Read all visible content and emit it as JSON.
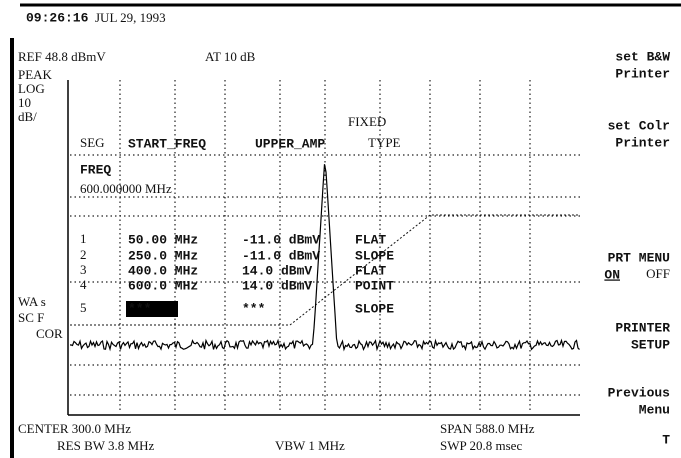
{
  "header": {
    "time": "09:26:16",
    "date": "JUL 29, 1993",
    "ref": "REF 48.8 dBmV",
    "atten": "AT 10 dB"
  },
  "left_labels": {
    "top": [
      "PEAK",
      "LOG",
      "10",
      "dB/"
    ],
    "bottom": [
      "WA s",
      "SC F",
      "COR"
    ]
  },
  "table": {
    "fixed": "FIXED",
    "columns": [
      "SEG",
      "START_FREQ",
      "UPPER_AMP",
      "TYPE"
    ],
    "field": "FREQ",
    "field_value": "600.000000 MHz",
    "rows": [
      [
        "1",
        "50.00 MHz",
        "-11.0 dBmV",
        "FLAT"
      ],
      [
        "2",
        "250.0 MHz",
        "-11.0 dBmV",
        "SLOPE"
      ],
      [
        "3",
        "400.0 MHz",
        "14.0 dBmV",
        "FLAT"
      ],
      [
        "4",
        "600.0 MHz",
        "14.0 dBmV",
        "POINT"
      ],
      [
        "5",
        "***",
        "***",
        "SLOPE"
      ]
    ]
  },
  "softkeys": [
    {
      "lines": [
        "set B&W",
        "Printer"
      ]
    },
    {
      "lines": [
        "set Colr",
        "Printer"
      ]
    },
    {
      "lines": [
        "PRT MENU"
      ],
      "on": "ON",
      "off": "OFF"
    },
    {
      "lines": [
        "PRINTER",
        "SETUP"
      ]
    },
    {
      "lines": [
        "Previous",
        "Menu"
      ]
    },
    {
      "lines": [
        "T"
      ]
    }
  ],
  "footer": {
    "center": "CENTER 300.0 MHz",
    "span": "SPAN 588.0 MHz",
    "res_bw": "RES BW 3.8 MHz",
    "vbw": "VBW 1 MHz",
    "swp": "SWP 20.8 msec"
  }
}
